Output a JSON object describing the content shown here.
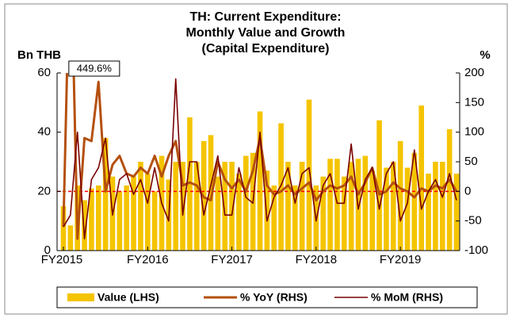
{
  "chart_data": {
    "type": "bar_line_combo",
    "title": [
      "TH: Current Expenditure:",
      "Monthly Value and Growth",
      "(Capital Expenditure)"
    ],
    "y_label": "Bn THB",
    "y2_label": "%",
    "categories": [
      "FY2015",
      null,
      null,
      null,
      null,
      null,
      null,
      null,
      null,
      null,
      null,
      null,
      "FY2016",
      null,
      null,
      null,
      null,
      null,
      null,
      null,
      null,
      null,
      null,
      null,
      "FY2017",
      null,
      null,
      null,
      null,
      null,
      null,
      null,
      null,
      null,
      null,
      null,
      "FY2018",
      null,
      null,
      null,
      null,
      null,
      null,
      null,
      null,
      null,
      null,
      null,
      "FY2019",
      null,
      null,
      null,
      null,
      null,
      null,
      null,
      null
    ],
    "series": [
      {
        "name": "Value (LHS)",
        "kind": "bar",
        "axis": "y",
        "color": "#f5c400",
        "values": [
          15,
          8.5,
          22,
          17,
          21,
          22,
          38,
          25,
          20,
          22,
          25,
          30,
          26,
          20,
          32,
          24,
          30,
          30,
          45,
          30,
          37,
          39,
          25,
          30,
          30,
          26,
          32,
          33,
          47,
          27,
          22,
          43,
          30,
          22,
          30,
          51,
          22,
          25,
          31,
          31,
          25,
          30,
          31,
          32,
          27,
          44,
          28,
          30,
          37,
          28,
          33,
          49,
          26,
          30,
          30,
          41,
          26
        ]
      },
      {
        "name": "% YoY (RHS)",
        "kind": "line",
        "axis": "y2",
        "color": "#b5500e",
        "width": 3,
        "values": [
          -60,
          449.6,
          -80,
          90,
          85,
          185,
          0,
          45,
          60,
          30,
          25,
          40,
          30,
          60,
          25,
          60,
          85,
          10,
          15,
          10,
          -10,
          -15,
          50,
          20,
          5,
          20,
          0,
          35,
          90,
          10,
          -5,
          0,
          10,
          -5,
          5,
          15,
          -15,
          0,
          10,
          5,
          10,
          25,
          -5,
          15,
          40,
          -5,
          0,
          15,
          5,
          0,
          -10,
          5,
          0,
          10,
          5,
          20,
          0
        ],
        "value_labels": [
          null,
          "449.6%",
          null,
          null,
          null,
          null,
          null,
          null,
          null,
          null,
          null,
          null,
          null,
          null,
          null,
          null,
          null,
          null,
          null,
          null,
          null,
          null,
          null,
          null,
          null,
          null,
          null,
          null,
          null,
          null,
          null,
          null,
          null,
          null,
          null,
          null,
          null,
          null,
          null,
          null,
          null,
          null,
          null,
          null,
          null,
          null,
          null,
          null,
          null,
          null,
          null,
          null,
          null,
          null,
          null,
          null,
          null
        ]
      },
      {
        "name": "% MoM (RHS)",
        "kind": "line",
        "axis": "y2",
        "color": "#7a0000",
        "width": 1.6,
        "values": [
          -60,
          -40,
          100,
          -80,
          20,
          40,
          90,
          -40,
          20,
          30,
          -5,
          20,
          -20,
          40,
          -20,
          -50,
          190,
          -40,
          50,
          50,
          -40,
          10,
          60,
          -40,
          -40,
          40,
          -10,
          -20,
          100,
          -50,
          -10,
          10,
          40,
          -20,
          30,
          40,
          -50,
          10,
          30,
          -20,
          -20,
          80,
          -30,
          20,
          40,
          -30,
          30,
          50,
          -50,
          -20,
          70,
          -30,
          0,
          20,
          -10,
          30,
          -15
        ]
      }
    ],
    "ylim": [
      0,
      60
    ],
    "yticks": [
      0,
      20,
      40,
      60
    ],
    "y2lim": [
      -100,
      200
    ],
    "y2ticks": [
      -100,
      -50,
      0,
      50,
      100,
      150,
      200
    ],
    "y2_reference_line": 0,
    "reference_color": "#ff0000",
    "legend": "bottom"
  }
}
